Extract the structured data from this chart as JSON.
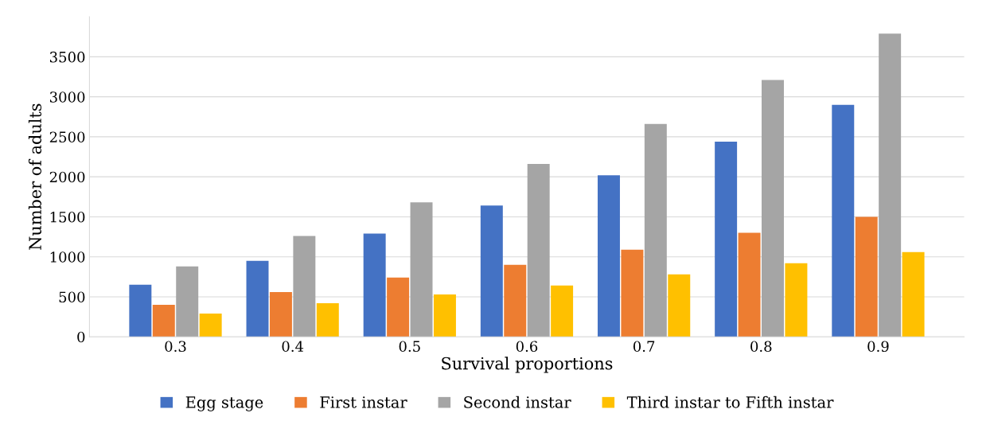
{
  "chart_data": {
    "type": "bar",
    "xlabel": "Survival proportions",
    "ylabel": "Number of adults",
    "categories": [
      "0.3",
      "0.4",
      "0.5",
      "0.6",
      "0.7",
      "0.8",
      "0.9"
    ],
    "series": [
      {
        "name": "Egg stage",
        "color": "#4472c4",
        "values": [
          650,
          950,
          1290,
          1640,
          2020,
          2440,
          2900
        ]
      },
      {
        "name": "First instar",
        "color": "#ed7d31",
        "values": [
          400,
          560,
          740,
          900,
          1090,
          1300,
          1500
        ]
      },
      {
        "name": "Second instar",
        "color": "#a5a5a5",
        "values": [
          880,
          1260,
          1680,
          2160,
          2660,
          3210,
          3790
        ]
      },
      {
        "name": "Third instar to Fifth instar",
        "color": "#ffc000",
        "values": [
          290,
          420,
          530,
          640,
          780,
          920,
          1060
        ]
      }
    ],
    "ylim": [
      0,
      4000
    ],
    "yticks": [
      0,
      500,
      1000,
      1500,
      2000,
      2500,
      3000,
      3500
    ],
    "grid": "y",
    "legend": "bottom"
  }
}
